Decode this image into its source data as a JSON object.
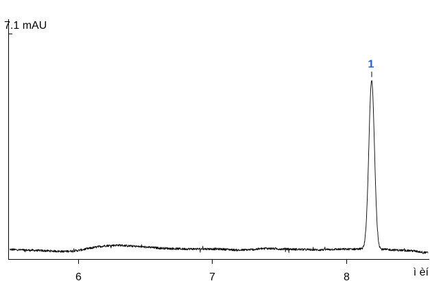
{
  "colors": {
    "trace": "#000000",
    "axis": "#000000",
    "peak_label": "#1f5fd6",
    "background": "#ffffff"
  },
  "chart_data": {
    "type": "line",
    "title": "",
    "xlabel": "",
    "ylabel": "7.1 mAU",
    "x_unit_label": "ì èí",
    "xlim": [
      5.48,
      8.62
    ],
    "ylim": [
      -0.3,
      7.1
    ],
    "x_ticks": [
      6,
      7,
      8
    ],
    "x_tick_labels": [
      "6",
      "7",
      "8"
    ],
    "grid": false,
    "legend": "none",
    "series": [
      {
        "baseline_points": [
          [
            5.5,
            0.0
          ],
          [
            5.7,
            -0.03
          ],
          [
            5.9,
            -0.06
          ],
          [
            6.0,
            -0.03
          ],
          [
            6.1,
            0.05
          ],
          [
            6.2,
            0.12
          ],
          [
            6.3,
            0.14
          ],
          [
            6.4,
            0.11
          ],
          [
            6.5,
            0.08
          ],
          [
            6.6,
            0.05
          ],
          [
            6.7,
            0.03
          ],
          [
            6.8,
            0.02
          ],
          [
            6.9,
            0.02
          ],
          [
            7.0,
            0.02
          ],
          [
            7.1,
            0.01
          ],
          [
            7.2,
            -0.02
          ],
          [
            7.3,
            0.0
          ],
          [
            7.4,
            0.04
          ],
          [
            7.5,
            0.02
          ],
          [
            7.6,
            0.01
          ],
          [
            7.7,
            0.0
          ],
          [
            7.8,
            -0.01
          ],
          [
            7.9,
            0.01
          ],
          [
            8.0,
            0.01
          ],
          [
            8.1,
            0.02
          ],
          [
            8.3,
            0.0
          ],
          [
            8.4,
            -0.02
          ],
          [
            8.5,
            -0.04
          ],
          [
            8.6,
            -0.1
          ]
        ],
        "peaks": [
          {
            "label": "1",
            "retention_time": 8.19,
            "height": 5.32,
            "width_sigma": 0.021
          }
        ]
      }
    ]
  }
}
